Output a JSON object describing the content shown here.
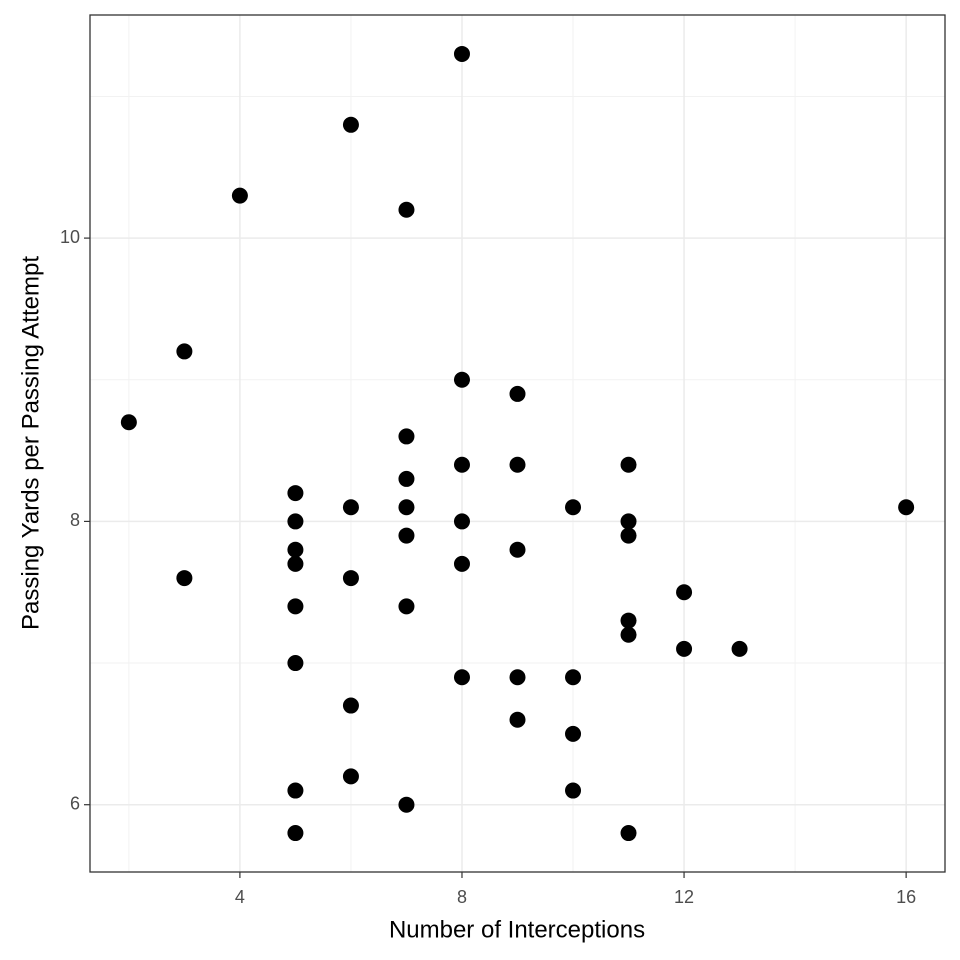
{
  "chart_data": {
    "type": "scatter",
    "x_label": "Number of Interceptions",
    "y_label": "Passing Yards per Passing Attempt",
    "x": [
      2,
      3,
      3,
      4,
      5,
      5,
      5,
      5,
      5,
      5,
      5,
      5,
      6,
      6,
      6,
      6,
      6,
      7,
      7,
      7,
      7,
      7,
      7,
      7,
      8,
      8,
      8,
      8,
      8,
      8,
      9,
      9,
      9,
      9,
      9,
      10,
      10,
      10,
      10,
      11,
      11,
      11,
      11,
      11,
      11,
      12,
      12,
      13,
      16
    ],
    "y": [
      8.7,
      9.2,
      7.6,
      10.3,
      8.2,
      8.0,
      7.8,
      7.7,
      7.4,
      7.0,
      6.1,
      5.8,
      10.8,
      8.1,
      7.6,
      6.7,
      6.2,
      10.2,
      8.6,
      8.3,
      8.1,
      7.9,
      7.4,
      6.0,
      11.3,
      9.0,
      8.4,
      8.0,
      7.7,
      6.9,
      8.9,
      8.4,
      7.8,
      6.9,
      6.6,
      8.1,
      6.9,
      6.5,
      6.1,
      8.4,
      8.0,
      7.9,
      7.3,
      7.2,
      5.8,
      7.5,
      7.1,
      7.1,
      8.1
    ],
    "color": "#000000",
    "xlim": [
      1.3,
      16.7
    ],
    "ylim": [
      5.525,
      11.575
    ],
    "xticks": [
      4,
      8,
      12,
      16
    ],
    "yticks": [
      6,
      8,
      10
    ],
    "x_minor_grid": [
      2,
      6,
      10,
      14
    ],
    "y_minor_grid": [
      7,
      9,
      11
    ],
    "grid": true
  }
}
